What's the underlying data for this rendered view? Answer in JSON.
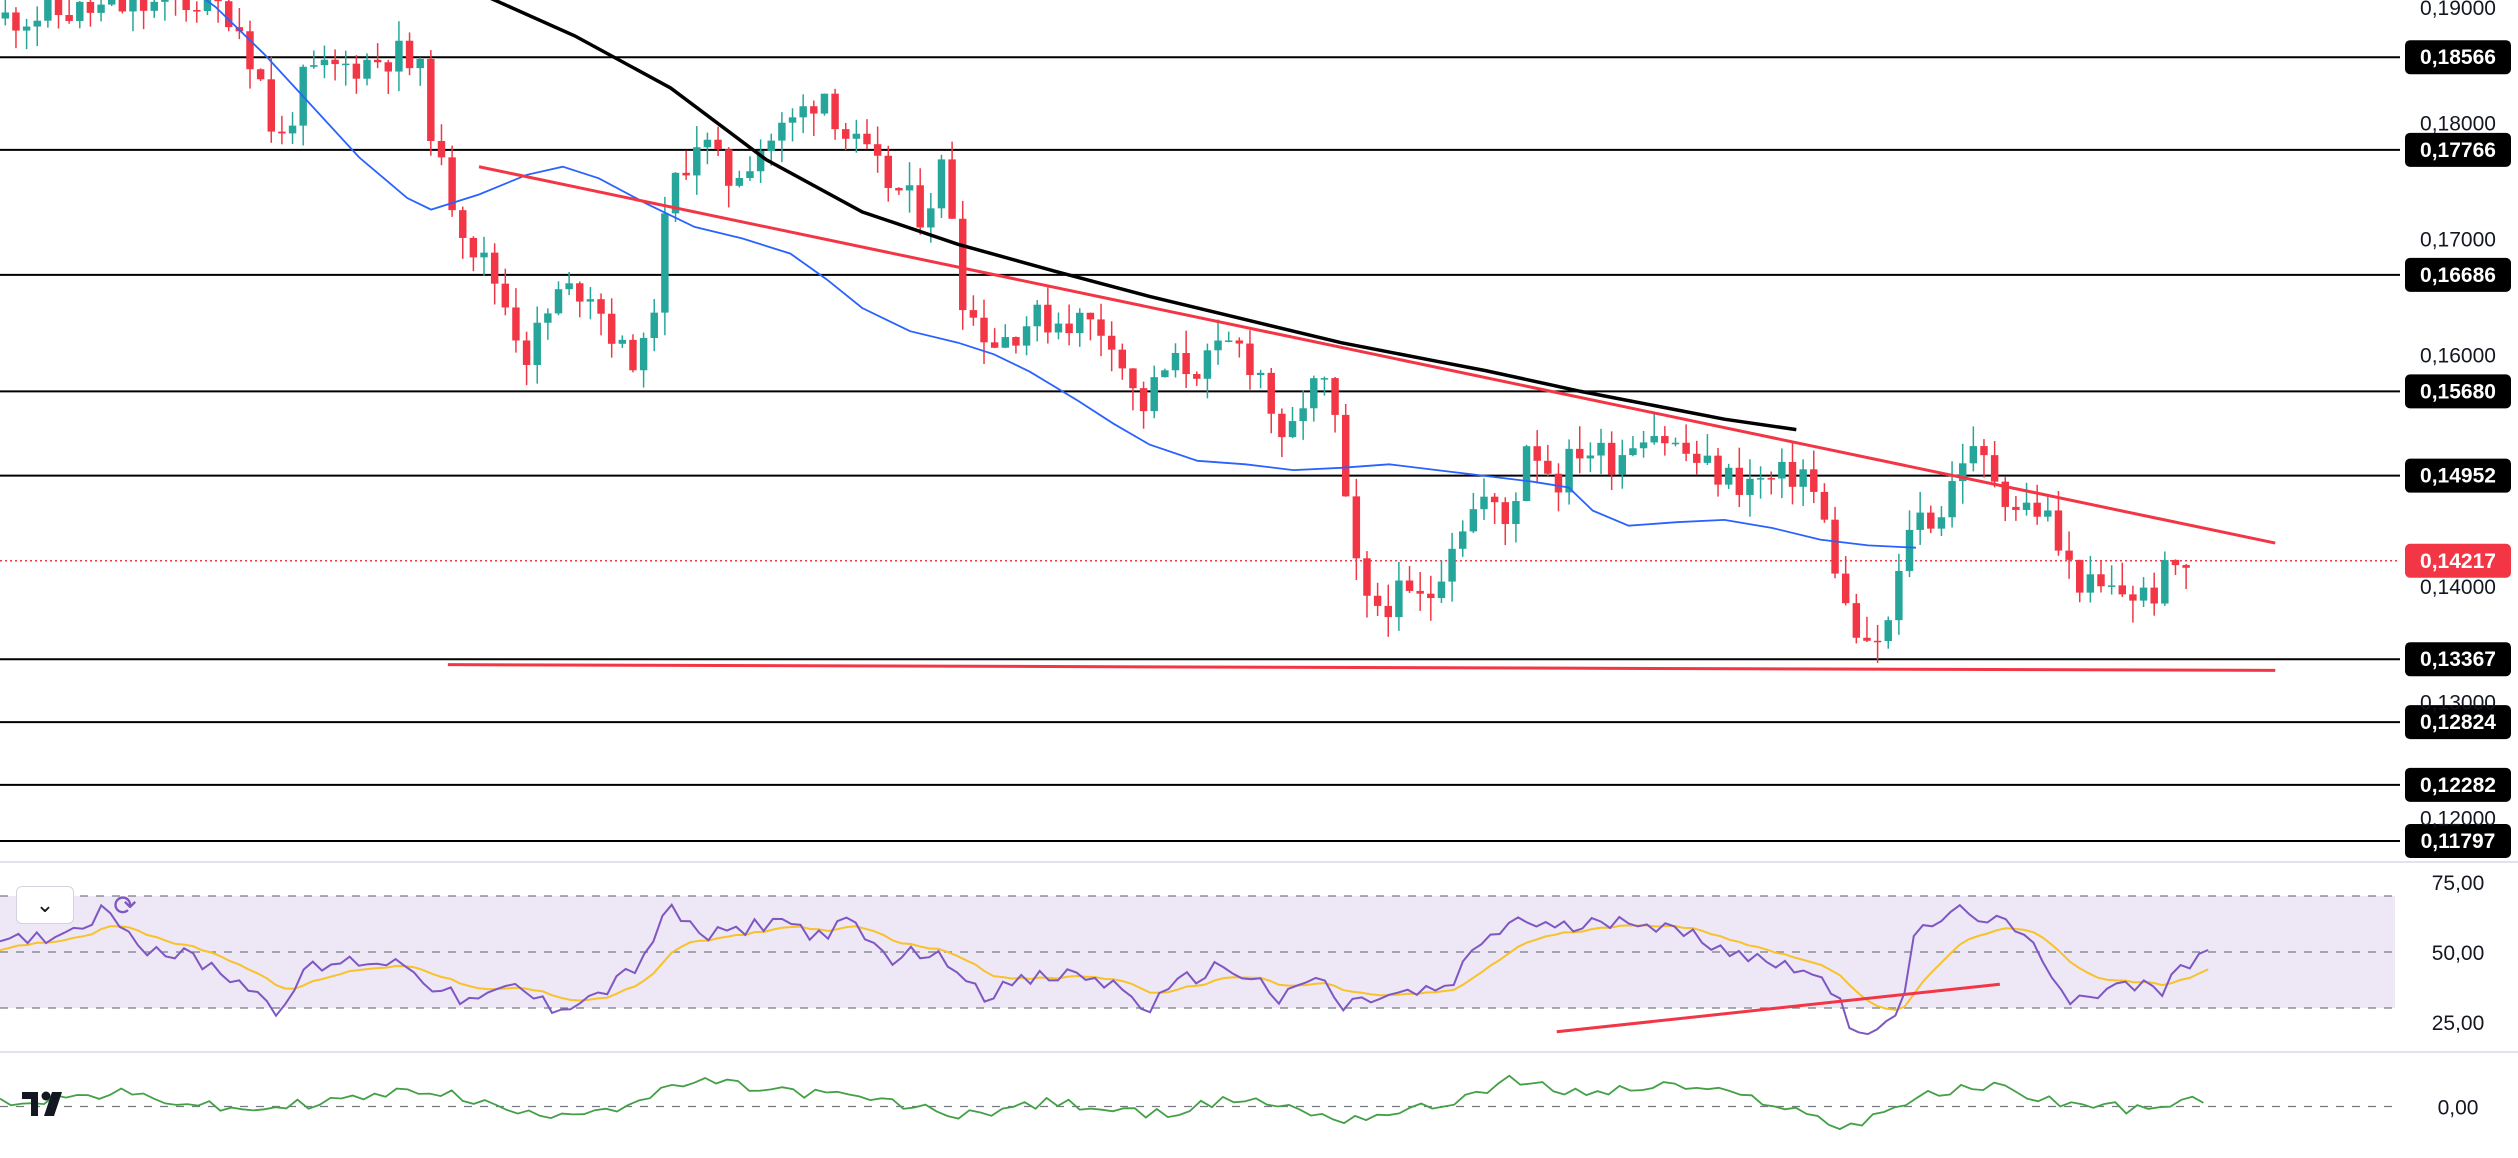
{
  "price_chart": {
    "type": "candlestick",
    "price_axis_ticks": [
      "0,19000",
      "0,18000",
      "0,17000",
      "0,16000",
      "0,14000",
      "0,13000",
      "0,12000"
    ],
    "ylim": [
      0.1165,
      0.1906
    ],
    "level_lines": [
      {
        "value": 0.18566,
        "label": "0,18566"
      },
      {
        "value": 0.17766,
        "label": "0,17766"
      },
      {
        "value": 0.16686,
        "label": "0,16686"
      },
      {
        "value": 0.1568,
        "label": "0,15680"
      },
      {
        "value": 0.14952,
        "label": "0,14952"
      },
      {
        "value": 0.13367,
        "label": "0,13367"
      },
      {
        "value": 0.12824,
        "label": "0,12824"
      },
      {
        "value": 0.12282,
        "label": "0,12282"
      },
      {
        "value": 0.11797,
        "label": "0,11797"
      }
    ],
    "current_price": {
      "value": 0.14217,
      "label": "0,14217"
    },
    "colors": {
      "up": "#26a69a",
      "down": "#f23645",
      "trend": "#f23645",
      "ma_fast": "#2962ff",
      "ma_slow": "#000000",
      "level": "#000000",
      "badge": "#000000",
      "current": "#f23645"
    },
    "trendlines": [
      {
        "name": "descending-resistance",
        "from": [
          0.2,
          0.1762
        ],
        "to": [
          0.95,
          0.1437
        ]
      },
      {
        "name": "horizontal-support",
        "from": [
          0.187,
          0.1332
        ],
        "to": [
          0.95,
          0.1327
        ]
      }
    ],
    "ma_slow_points": [
      [
        0.2,
        0.1912
      ],
      [
        0.24,
        0.1875
      ],
      [
        0.28,
        0.183
      ],
      [
        0.32,
        0.1768
      ],
      [
        0.36,
        0.1723
      ],
      [
        0.4,
        0.1695
      ],
      [
        0.44,
        0.1672
      ],
      [
        0.48,
        0.165
      ],
      [
        0.52,
        0.163
      ],
      [
        0.56,
        0.161
      ],
      [
        0.6,
        0.1594
      ],
      [
        0.62,
        0.1586
      ],
      [
        0.64,
        0.1577
      ],
      [
        0.66,
        0.1568
      ],
      [
        0.68,
        0.156
      ],
      [
        0.7,
        0.1552
      ],
      [
        0.72,
        0.1544
      ],
      [
        0.75,
        0.1535
      ]
    ],
    "ma_fast_points": [
      [
        0.0,
        0.195
      ],
      [
        0.07,
        0.193
      ],
      [
        0.09,
        0.19
      ],
      [
        0.11,
        0.186
      ],
      [
        0.13,
        0.1815
      ],
      [
        0.15,
        0.177
      ],
      [
        0.17,
        0.1735
      ],
      [
        0.18,
        0.1725
      ],
      [
        0.2,
        0.1738
      ],
      [
        0.22,
        0.1755
      ],
      [
        0.235,
        0.1762
      ],
      [
        0.25,
        0.1752
      ],
      [
        0.27,
        0.173
      ],
      [
        0.29,
        0.171
      ],
      [
        0.31,
        0.17
      ],
      [
        0.33,
        0.1687
      ],
      [
        0.345,
        0.1665
      ],
      [
        0.36,
        0.164
      ],
      [
        0.38,
        0.162
      ],
      [
        0.4,
        0.161
      ],
      [
        0.415,
        0.16
      ],
      [
        0.43,
        0.1585
      ],
      [
        0.45,
        0.156
      ],
      [
        0.465,
        0.154
      ],
      [
        0.48,
        0.1522
      ],
      [
        0.5,
        0.1508
      ],
      [
        0.52,
        0.1505
      ],
      [
        0.54,
        0.15
      ],
      [
        0.56,
        0.1502
      ],
      [
        0.58,
        0.1505
      ],
      [
        0.6,
        0.15
      ],
      [
        0.62,
        0.1495
      ],
      [
        0.64,
        0.149
      ],
      [
        0.655,
        0.1485
      ],
      [
        0.665,
        0.1465
      ],
      [
        0.68,
        0.1452
      ],
      [
        0.7,
        0.1455
      ],
      [
        0.72,
        0.1457
      ],
      [
        0.74,
        0.145
      ],
      [
        0.76,
        0.144
      ],
      [
        0.78,
        0.1435
      ],
      [
        0.8,
        0.1433
      ]
    ]
  },
  "rsi_panel": {
    "ticks": [
      "75,00",
      "50,00",
      "25,00"
    ],
    "ylim": [
      15,
      80
    ],
    "band": [
      30,
      70
    ],
    "trendline": {
      "from": [
        0.65,
        21.5
      ],
      "to": [
        0.835,
        38.5
      ]
    },
    "colors": {
      "rsi": "#7e57c2",
      "signal": "#f7c22a",
      "band": "#ede7f6",
      "trend": "#f23645"
    }
  },
  "momentum_panel": {
    "ticks": [
      "0,00"
    ],
    "ylim": [
      -1.2,
      1.2
    ],
    "colors": {
      "line": "#43a047"
    }
  },
  "controls": {
    "collapse_icon": "chevron-down-icon",
    "collapse_glyph": "⌄",
    "refresh_icon": "refresh-icon",
    "refresh_glyph": "⟳"
  },
  "branding": {
    "logo": "tradingview-logo"
  }
}
